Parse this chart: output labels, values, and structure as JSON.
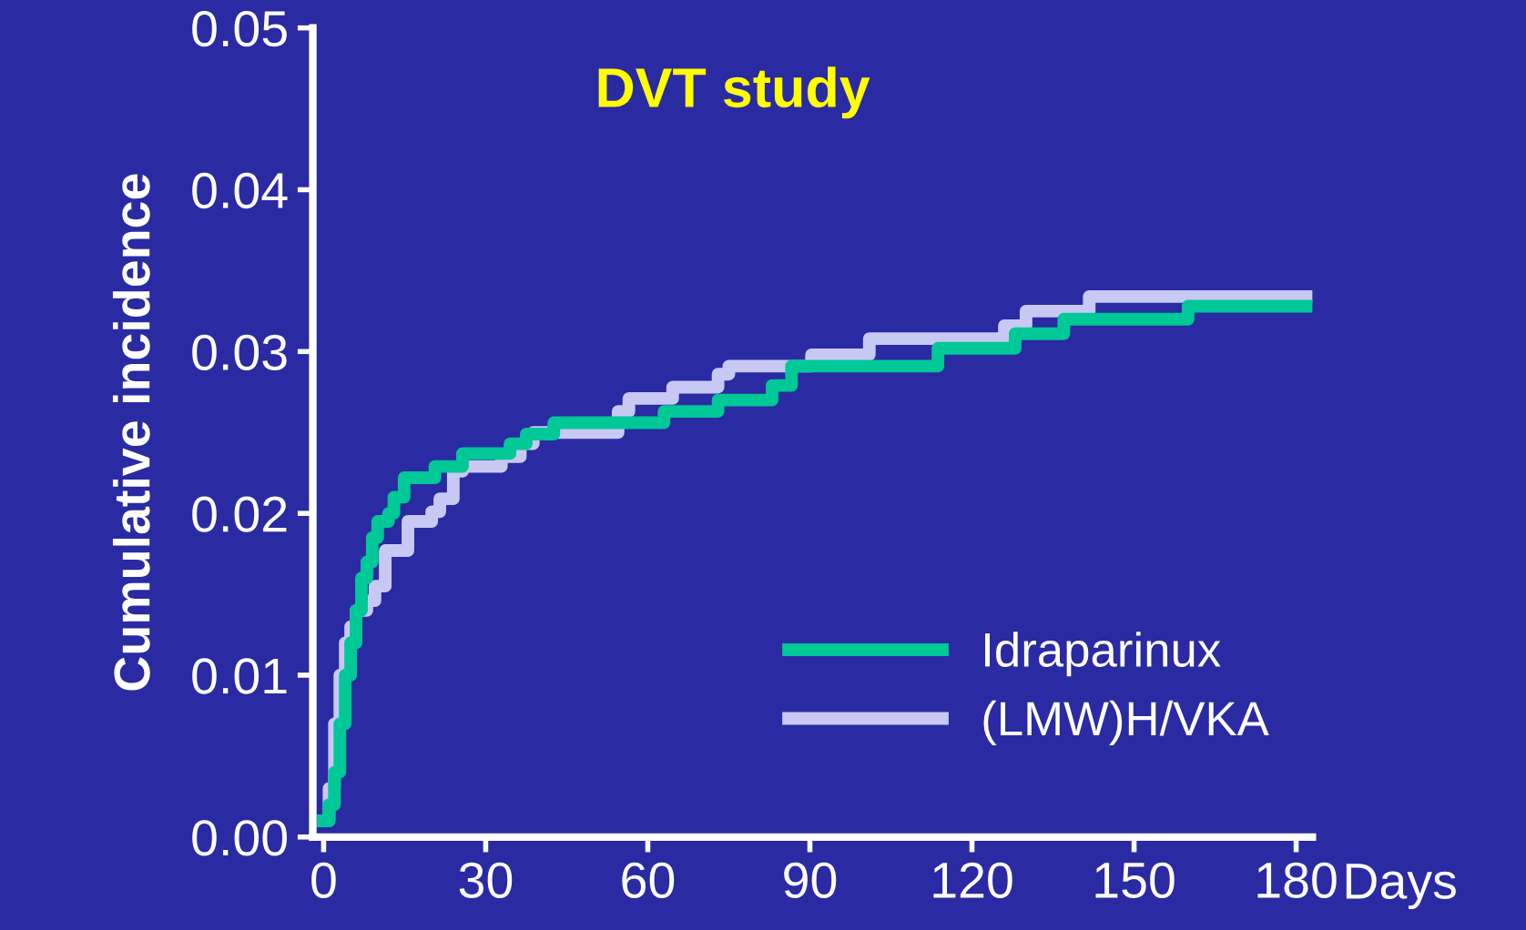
{
  "chart_data": {
    "type": "step",
    "title": "DVT study",
    "xlabel": "Days",
    "ylabel": "Cumulative incidence",
    "xlim": [
      -2,
      183
    ],
    "ylim": [
      0,
      0.05
    ],
    "xticks": [
      0,
      30,
      60,
      90,
      120,
      150,
      180
    ],
    "yticks": [
      {
        "value": 0,
        "label": "0.00"
      },
      {
        "value": 0.01,
        "label": "0.01"
      },
      {
        "value": 0.02,
        "label": "0.02"
      },
      {
        "value": 0.03,
        "label": "0.03"
      },
      {
        "value": 0.04,
        "label": "0.04"
      },
      {
        "value": 0.05,
        "label": "0.05"
      }
    ],
    "grid": false,
    "legend": "bottom right",
    "line_style": "solid",
    "marker": "none",
    "series": [
      {
        "name": "(LMW)H/VKA",
        "color": "#c8c8f5",
        "x": [
          0,
          1,
          2,
          3,
          4,
          5,
          6,
          8,
          9.5,
          11.4,
          15.6,
          20,
          21.5,
          24,
          25.7,
          32.9,
          36.4,
          38.8,
          54.5,
          56.5,
          64.6,
          73,
          75,
          90.3,
          101,
          126,
          130,
          141.7,
          182
        ],
        "values": [
          0.001,
          0.003,
          0.007,
          0.01,
          0.012,
          0.013,
          0.014,
          0.0146,
          0.0155,
          0.0177,
          0.0195,
          0.0201,
          0.0209,
          0.0226,
          0.0229,
          0.0235,
          0.0243,
          0.025,
          0.0263,
          0.0271,
          0.0278,
          0.0286,
          0.0291,
          0.0298,
          0.0308,
          0.0316,
          0.0325,
          0.0334,
          0.0334
        ]
      },
      {
        "name": "Idraparinux",
        "color": "#00c896",
        "x": [
          0,
          1,
          2,
          3,
          4,
          5,
          6,
          7,
          8,
          9,
          10,
          12,
          13,
          14.9,
          20.6,
          25.7,
          34.5,
          37.5,
          42.6,
          63,
          73,
          83,
          86.6,
          113.7,
          128,
          137,
          160,
          182
        ],
        "values": [
          0.001,
          0.002,
          0.004,
          0.007,
          0.01,
          0.012,
          0.014,
          0.016,
          0.017,
          0.0185,
          0.0195,
          0.02,
          0.021,
          0.0222,
          0.0229,
          0.0237,
          0.0243,
          0.0249,
          0.0256,
          0.0263,
          0.027,
          0.0279,
          0.0291,
          0.0302,
          0.0311,
          0.032,
          0.0328,
          0.0328
        ]
      }
    ]
  }
}
